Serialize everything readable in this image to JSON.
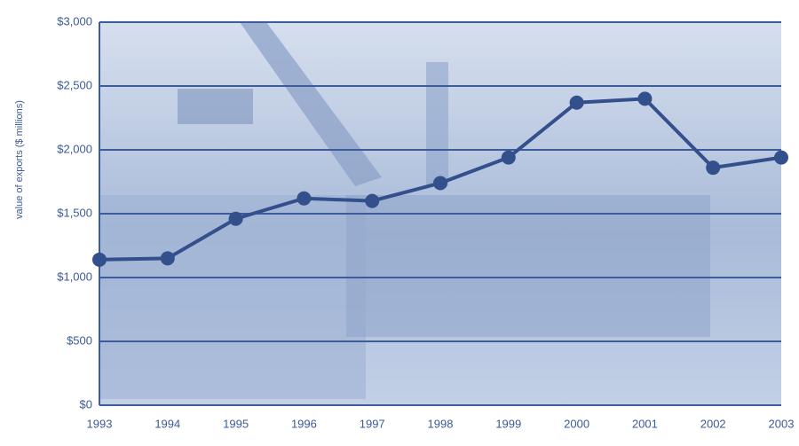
{
  "chart_data": {
    "type": "line",
    "y_label": "value of exports ($ millions)",
    "categories": [
      "1993",
      "1994",
      "1995",
      "1996",
      "1997",
      "1998",
      "1999",
      "2000",
      "2001",
      "2002",
      "2003"
    ],
    "series": [
      {
        "name": "value of exports",
        "color": "#34508c",
        "values": [
          1140,
          1150,
          1460,
          1620,
          1600,
          1740,
          1940,
          2370,
          2400,
          1860,
          1940
        ]
      }
    ],
    "ylim": [
      0,
      3000
    ],
    "yticks": [
      {
        "value": 0,
        "label": "$0"
      },
      {
        "value": 500,
        "label": "$500"
      },
      {
        "value": 1000,
        "label": "$1,000"
      },
      {
        "value": 1500,
        "label": "$1,500"
      },
      {
        "value": 2000,
        "label": "$2,000"
      },
      {
        "value": 2500,
        "label": "$2,500"
      },
      {
        "value": 3000,
        "label": "$3,000"
      }
    ],
    "grid": true,
    "grid_color": "#3d5c9a"
  }
}
